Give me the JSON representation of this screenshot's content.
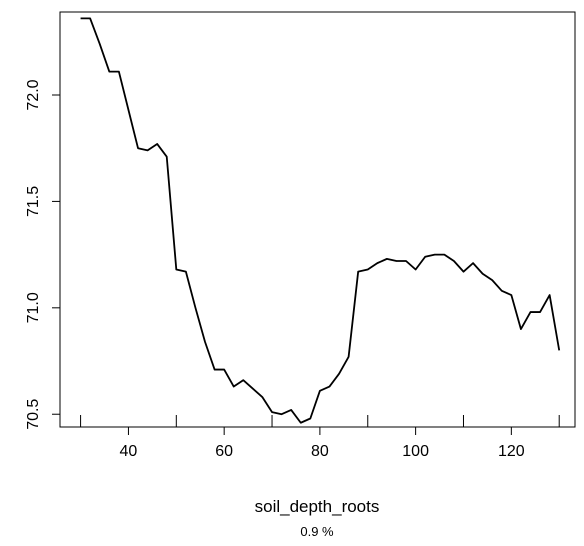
{
  "chart_data": {
    "type": "line",
    "title": "",
    "xlabel": "soil_depth_roots",
    "ylabel": "",
    "footnote": "0.9 %",
    "xlim": [
      25.7,
      133.3
    ],
    "ylim": [
      70.44,
      72.39
    ],
    "xticks": [
      40,
      60,
      80,
      100,
      120
    ],
    "yticks": [
      70.5,
      71.0,
      71.5,
      72.0
    ],
    "xtick_labels": [
      "40",
      "60",
      "80",
      "100",
      "120"
    ],
    "ytick_labels": [
      "70.5",
      "71.0",
      "71.5",
      "72.0"
    ],
    "rug": [
      30,
      50,
      70,
      90,
      110,
      130
    ],
    "grid": false,
    "legend": "none",
    "line_color": "#000000",
    "series": [
      {
        "x": [
          30,
          32,
          34,
          36,
          38,
          40,
          42,
          44,
          46,
          48,
          50,
          52,
          54,
          56,
          58,
          60,
          62,
          64,
          66,
          68,
          70,
          72,
          74,
          76,
          78,
          80,
          82,
          84,
          86,
          88,
          90,
          92,
          94,
          96,
          98,
          100,
          102,
          104,
          106,
          108,
          110,
          112,
          114,
          116,
          118,
          120,
          122,
          124,
          126,
          128,
          130
        ],
        "y": [
          72.36,
          72.36,
          72.24,
          72.11,
          72.11,
          71.93,
          71.75,
          71.74,
          71.77,
          71.71,
          71.18,
          71.17,
          71.0,
          70.84,
          70.71,
          70.71,
          70.63,
          70.66,
          70.62,
          70.58,
          70.51,
          70.5,
          70.52,
          70.46,
          70.48,
          70.61,
          70.63,
          70.69,
          70.77,
          71.17,
          71.18,
          71.21,
          71.23,
          71.22,
          71.22,
          71.18,
          71.24,
          71.25,
          71.25,
          71.22,
          71.17,
          71.21,
          71.16,
          71.13,
          71.08,
          71.06,
          70.9,
          70.98,
          70.98,
          71.06,
          70.8
        ]
      }
    ]
  }
}
